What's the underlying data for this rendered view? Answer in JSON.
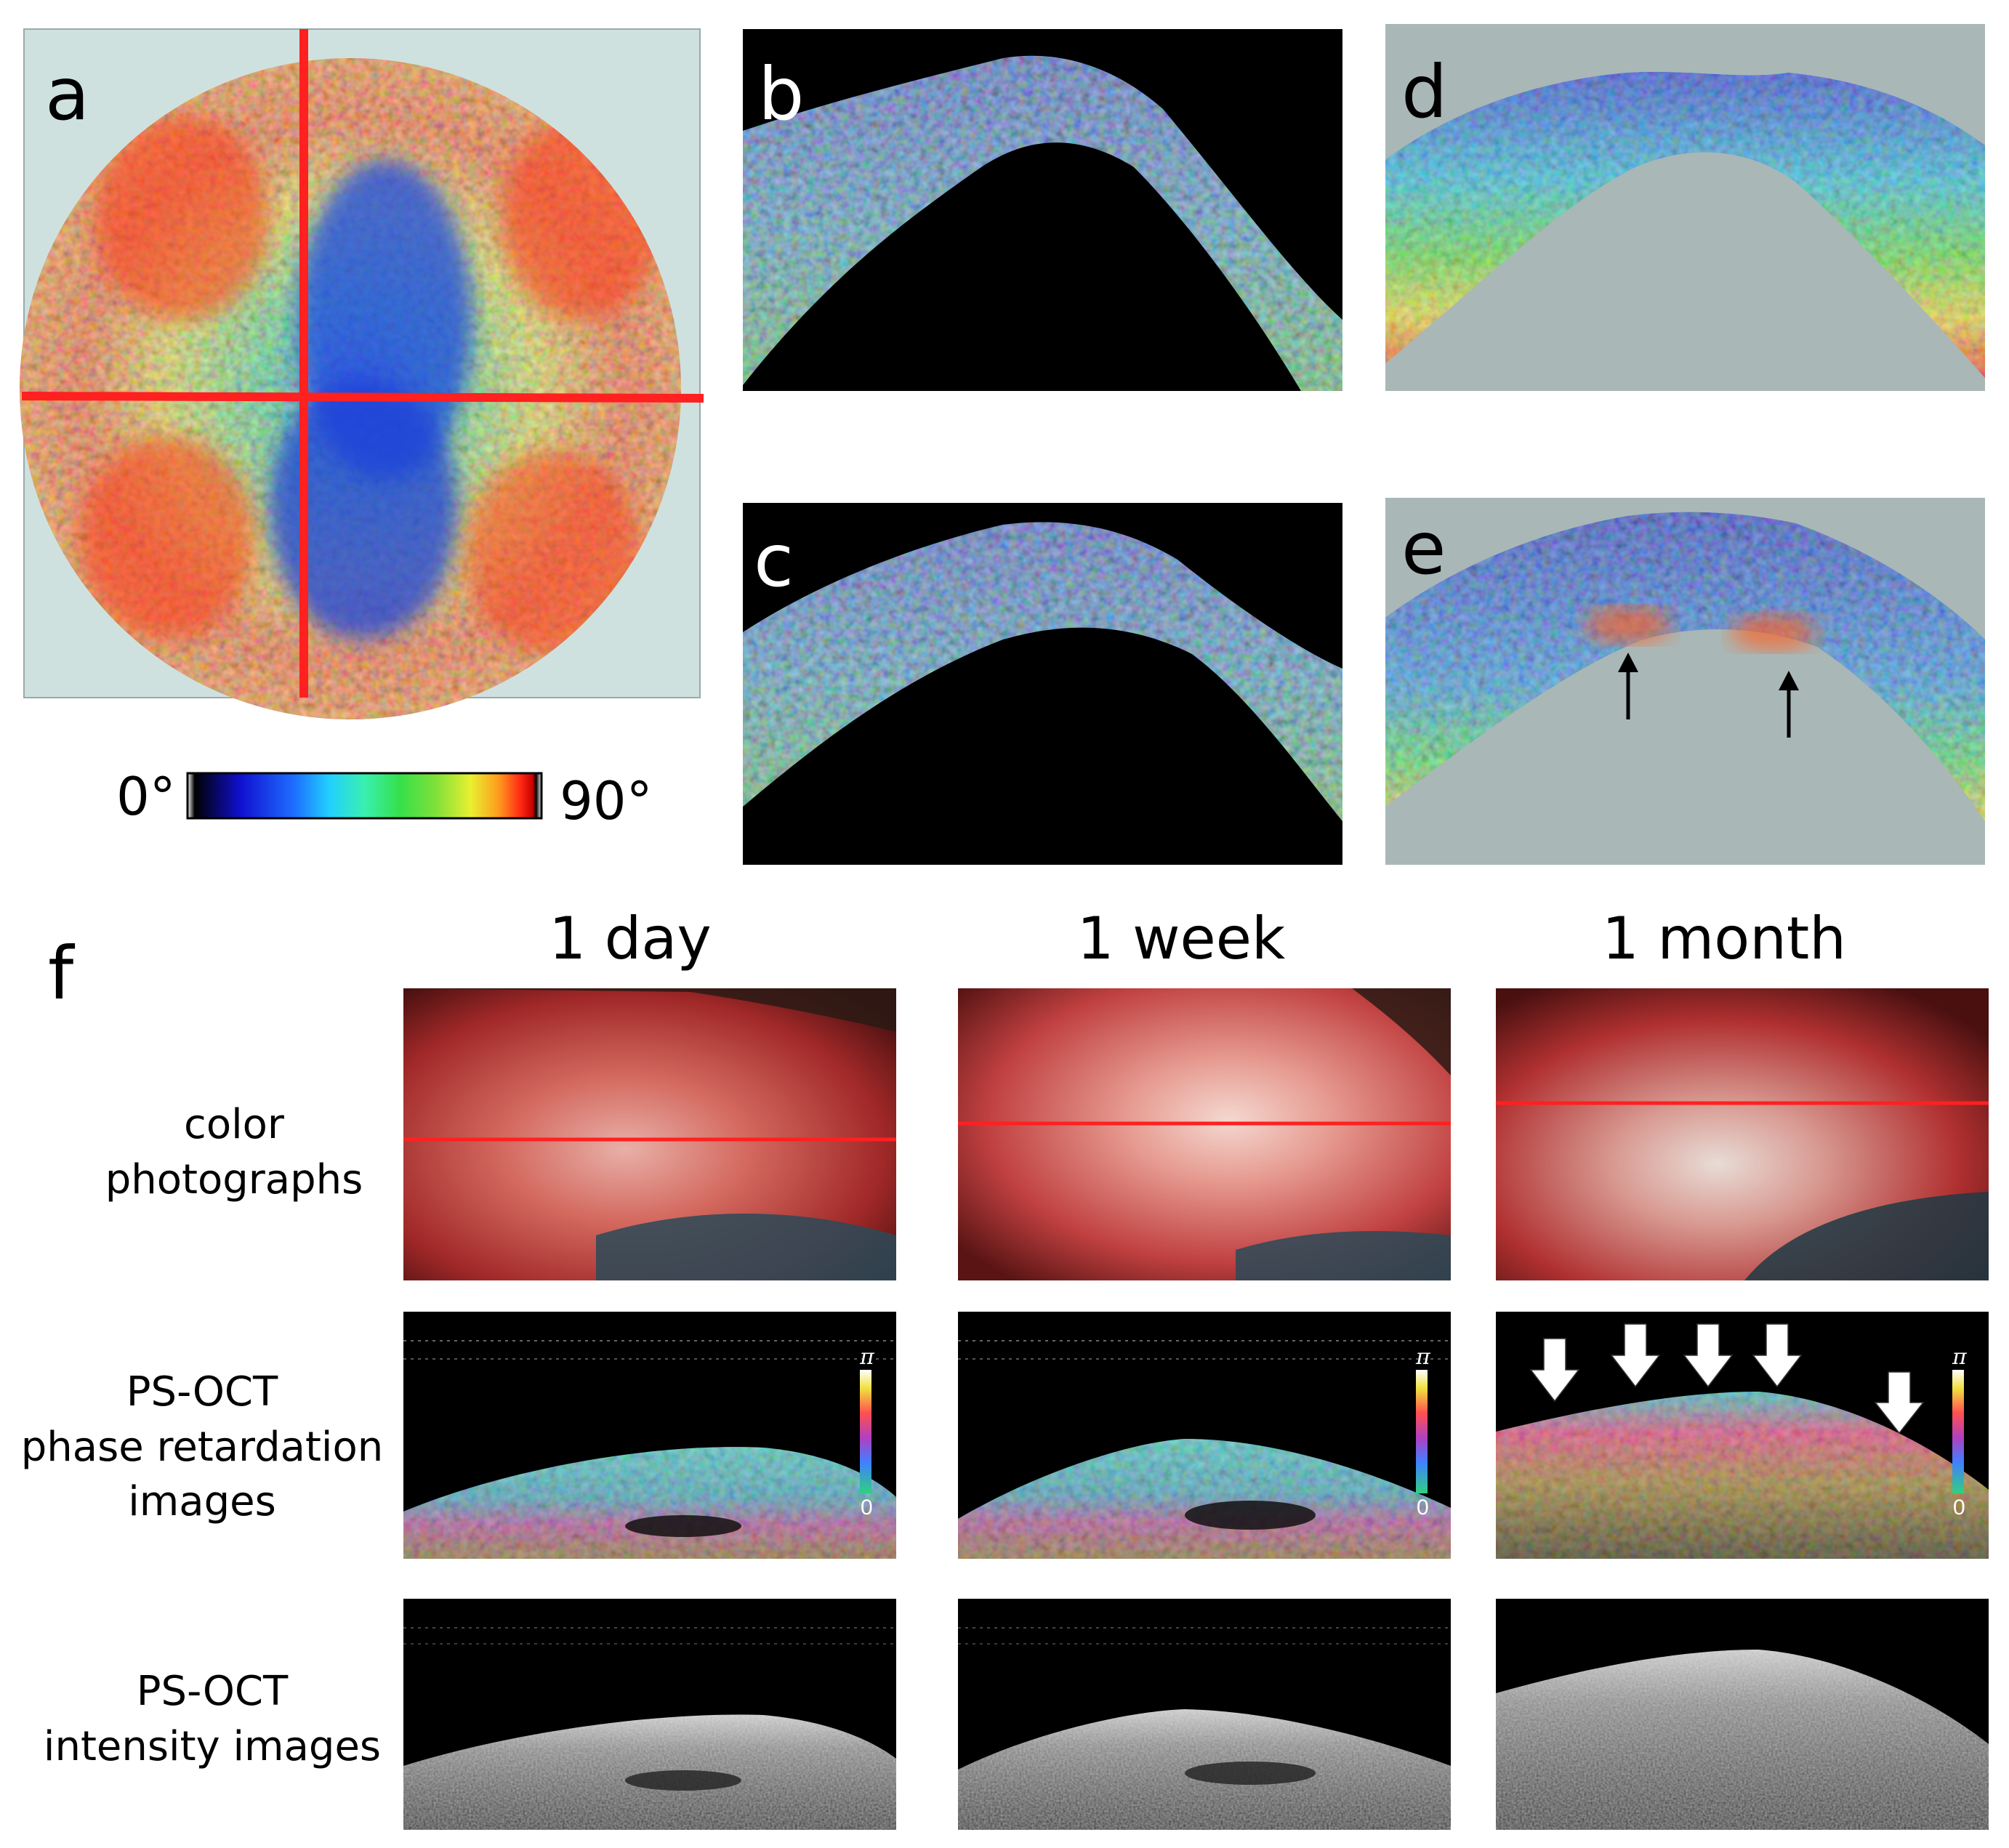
{
  "panels": {
    "a": "a",
    "b": "b",
    "c": "c",
    "d": "d",
    "e": "e",
    "f": "f"
  },
  "colorbar": {
    "min_label": "0°",
    "max_label": "90°",
    "colors": [
      "#ffffff",
      "#000000",
      "#1010d0",
      "#1e6dff",
      "#21d0ff",
      "#39f0b0",
      "#35e04a",
      "#7ee03a",
      "#e8f030",
      "#ff9a1e",
      "#ff2a14",
      "#c80000",
      "#ffffff"
    ]
  },
  "columns": [
    "1 day",
    "1 week",
    "1 month"
  ],
  "rows": [
    [
      "color",
      "photographs"
    ],
    [
      "PS-OCT",
      "phase retardation",
      "images"
    ],
    [
      "PS-OCT",
      "intensity images"
    ]
  ],
  "oct_scale": {
    "top": "π",
    "bottom": "0"
  },
  "accent_colors": {
    "scan_line": "#ff2020",
    "bg_light": "#a9b7b7",
    "bg_disk": "#cfe1df",
    "arrow_white": "#ffffff",
    "arrow_black": "#000000"
  }
}
